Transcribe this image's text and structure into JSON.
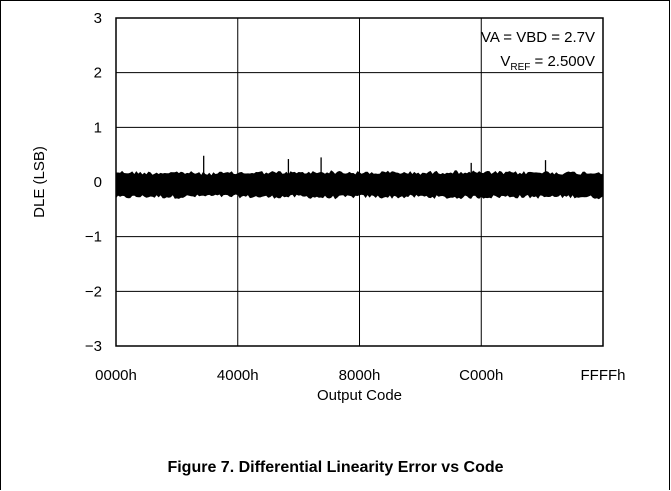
{
  "chart_data": {
    "type": "line",
    "title": "",
    "xlabel": "Output Code",
    "ylabel": "DLE (LSB)",
    "x_ticks": [
      "0000h",
      "4000h",
      "8000h",
      "C000h",
      "FFFFh"
    ],
    "x_tick_values": [
      0,
      16384,
      32768,
      49152,
      65535
    ],
    "y_ticks": [
      "3",
      "2",
      "1",
      "0",
      "−1",
      "−2",
      "−3"
    ],
    "y_tick_values": [
      3,
      2,
      1,
      0,
      -1,
      -2,
      -3
    ],
    "xlim": [
      0,
      65535
    ],
    "ylim": [
      -3,
      3
    ],
    "grid": true,
    "series": [
      {
        "color": "#000000",
        "envelope": {
          "x": [
            0,
            4096,
            8192,
            12288,
            16384,
            20480,
            24576,
            28672,
            32768,
            36864,
            40960,
            45056,
            49152,
            53248,
            57344,
            61440,
            65535
          ],
          "max": [
            0.22,
            0.2,
            0.21,
            0.19,
            0.2,
            0.21,
            0.2,
            0.22,
            0.2,
            0.21,
            0.2,
            0.22,
            0.21,
            0.2,
            0.21,
            0.2,
            0.21
          ],
          "min": [
            -0.32,
            -0.3,
            -0.31,
            -0.29,
            -0.3,
            -0.31,
            -0.3,
            -0.32,
            -0.3,
            -0.31,
            -0.3,
            -0.32,
            -0.31,
            -0.3,
            -0.31,
            -0.3,
            -0.32
          ]
        },
        "spikes": [
          {
            "x": 11800,
            "y": 0.48
          },
          {
            "x": 23200,
            "y": 0.42
          },
          {
            "x": 27600,
            "y": 0.45
          },
          {
            "x": 47800,
            "y": 0.35
          },
          {
            "x": 57800,
            "y": 0.4
          }
        ]
      }
    ],
    "annotations": {
      "line1": "VA = VBD = 2.7V",
      "line2_main": "V",
      "line2_sub": "REF",
      "line2_rest": " = 2.500V"
    }
  },
  "caption": "Figure 7. Differential Linearity Error vs Code"
}
